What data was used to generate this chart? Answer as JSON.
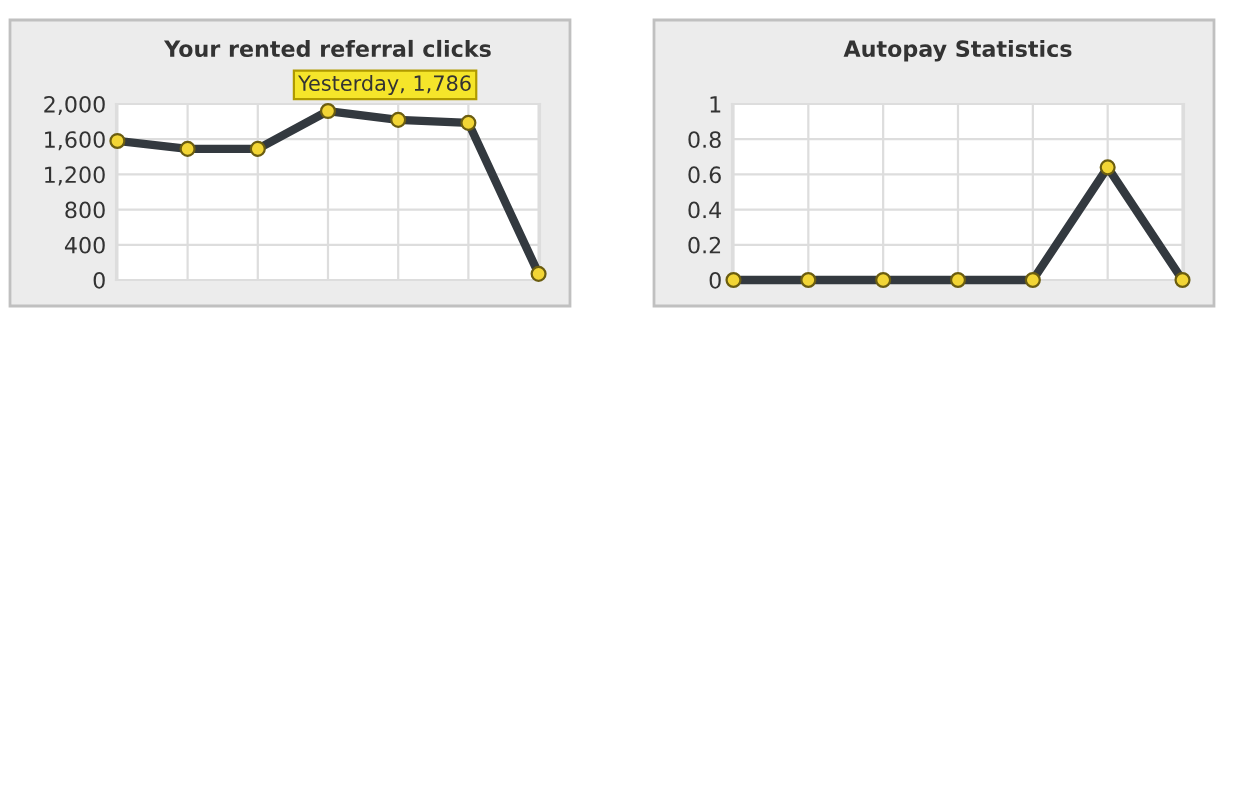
{
  "chart_data": [
    {
      "type": "line",
      "title": "Your rented referral clicks",
      "categories": [
        null,
        null,
        null,
        null,
        null,
        null,
        null
      ],
      "series": [
        {
          "color": "#33393f",
          "values": [
            1580,
            1490,
            1490,
            1920,
            1820,
            1786,
            70
          ]
        }
      ],
      "ylim": [
        0,
        2000
      ],
      "yticks": [
        {
          "value": 0,
          "label": "0"
        },
        {
          "value": 400,
          "label": "400"
        },
        {
          "value": 800,
          "label": "800"
        },
        {
          "value": 1200,
          "label": "1,200"
        },
        {
          "value": 1600,
          "label": "1,600"
        },
        {
          "value": 2000,
          "label": "2,000"
        }
      ],
      "grid": true,
      "marker": "circle",
      "line_style": "solid",
      "annotations": [
        {
          "text": "Yesterday, 1,786",
          "y": 1786
        }
      ]
    },
    {
      "type": "line",
      "title": "Autopay Statistics",
      "categories": [
        null,
        null,
        null,
        null,
        null,
        null,
        null
      ],
      "series": [
        {
          "color": "#33393f",
          "values": [
            0,
            0,
            0,
            0,
            0,
            0.64,
            0
          ]
        }
      ],
      "ylim": [
        0,
        1
      ],
      "yticks": [
        0,
        0.2,
        0.4,
        0.6,
        0.8,
        1
      ],
      "grid": true,
      "marker": "circle",
      "line_style": "solid"
    }
  ]
}
